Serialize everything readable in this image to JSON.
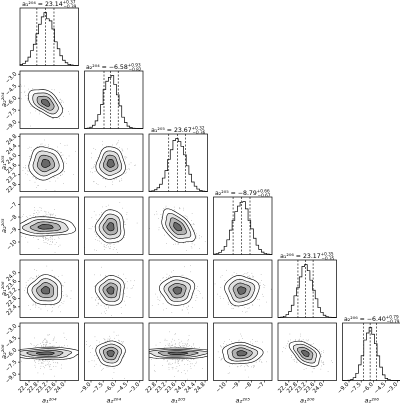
{
  "chart_data": {
    "type": "corner",
    "params": [
      {
        "label": "a₁²⁰⁴",
        "title": "a₁²⁰⁴ = 23.14",
        "median": 23.14,
        "plus": "+0.37",
        "minus": "−0.39",
        "sup": 0.37,
        "sdn": 0.39,
        "range": [
          22.0,
          24.6
        ],
        "ticks": [
          22.4,
          22.8,
          23.2,
          23.6,
          24.0
        ],
        "tick_labels": [
          "22.4",
          "22.8",
          "23.2",
          "23.6",
          "24.0"
        ]
      },
      {
        "label": "a₂²⁰⁴",
        "title": "a₂²⁰⁴ = −6.58",
        "median": -6.58,
        "plus": "+0.93",
        "minus": "−0.82",
        "sup": 0.93,
        "sdn": 0.82,
        "range": [
          -9.8,
          -2.6
        ],
        "ticks": [
          -9.0,
          -7.5,
          -6.0,
          -4.5,
          -3.0
        ],
        "tick_labels": [
          "−9.0",
          "−7.5",
          "−6.0",
          "−4.5",
          "−3.0"
        ]
      },
      {
        "label": "a₁²⁰⁵",
        "title": "a₁²⁰⁵ = 23.67",
        "median": 23.67,
        "plus": "+0.32",
        "minus": "−0.36",
        "sup": 0.32,
        "sdn": 0.36,
        "range": [
          22.5,
          24.9
        ],
        "ticks": [
          22.8,
          23.2,
          23.6,
          24.0,
          24.4,
          24.8
        ],
        "tick_labels": [
          "22.8",
          "23.2",
          "23.6",
          "24.0",
          "24.4",
          "24.8"
        ]
      },
      {
        "label": "a₂²⁰⁵",
        "title": "a₂²⁰⁵ = −8.79",
        "median": -8.79,
        "plus": "+0.66",
        "minus": "−0.67",
        "sup": 0.66,
        "sdn": 0.67,
        "range": [
          -11.0,
          -6.4
        ],
        "ticks": [
          -10,
          -9,
          -8,
          -7
        ],
        "tick_labels": [
          "−10",
          "−9",
          "−8",
          "−7"
        ]
      },
      {
        "label": "a₁²⁰⁶",
        "title": "a₁²⁰⁶ = 23.17",
        "median": 23.17,
        "plus": "+0.35",
        "minus": "−0.35",
        "sup": 0.35,
        "sdn": 0.35,
        "range": [
          21.9,
          24.6
        ],
        "ticks": [
          22.4,
          22.8,
          23.2,
          23.6,
          24.0
        ],
        "tick_labels": [
          "22.4",
          "22.8",
          "23.2",
          "23.6",
          "24.0"
        ]
      },
      {
        "label": "a₂²⁰⁶",
        "title": "a₂²⁰⁶ = −6.40",
        "median": -6.4,
        "plus": "+0.79",
        "minus": "−0.79",
        "sup": 0.79,
        "sdn": 0.79,
        "range": [
          -9.8,
          -2.6
        ],
        "ticks": [
          -9.0,
          -7.5,
          -6.0,
          -4.5,
          -3.0
        ],
        "tick_labels": [
          "−9.0",
          "−7.5",
          "−6.0",
          "−4.5",
          "−3.0"
        ]
      }
    ],
    "correlations": [
      [
        1,
        -0.5,
        0,
        0,
        0,
        0
      ],
      [
        -0.5,
        1,
        0,
        0,
        0,
        0
      ],
      [
        0,
        0,
        1,
        -0.5,
        0,
        0
      ],
      [
        0,
        0,
        -0.5,
        1,
        0,
        0
      ],
      [
        0,
        0,
        0,
        0,
        1,
        -0.5
      ],
      [
        0,
        0,
        0,
        0,
        -0.5,
        1
      ]
    ],
    "quantile_lines": [
      0.16,
      0.5,
      0.84
    ],
    "contour_levels_sigma": [
      0.5,
      1.0,
      1.5,
      2.0
    ],
    "colors": {
      "line": "#000000",
      "scatter": "#000000",
      "fill_outer": "#ffffff",
      "fill_inner": "#444444"
    }
  }
}
